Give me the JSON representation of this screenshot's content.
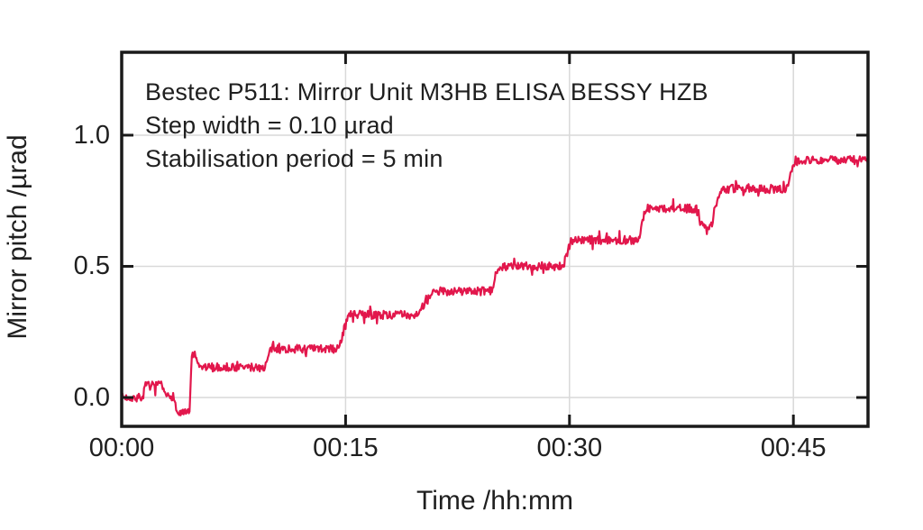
{
  "chart_data": {
    "type": "line",
    "title": "Bestec P511: Mirror Unit M3HB ELISA BESSY HZB",
    "annotation_lines": [
      "Bestec P511: Mirror Unit M3HB ELISA BESSY HZB",
      "Step width = 0.10 µrad",
      "Stabilisation period = 5 min"
    ],
    "xlabel": "Time /hh:mm",
    "ylabel": "Mirror pitch /µrad",
    "xlim": [
      0,
      50
    ],
    "ylim": [
      -0.11,
      1.316
    ],
    "x_unit": "minutes",
    "grid": true,
    "legend": "none",
    "x_ticks": [
      {
        "t": 0,
        "label": "00:00"
      },
      {
        "t": 15,
        "label": "00:15"
      },
      {
        "t": 30,
        "label": "00:30"
      },
      {
        "t": 45,
        "label": "00:45"
      }
    ],
    "y_ticks": [
      {
        "v": 0.0,
        "label": "0.0"
      },
      {
        "v": 0.5,
        "label": "0.5"
      },
      {
        "v": 1.0,
        "label": "1.0"
      }
    ],
    "colors": {
      "line": "#e2174c",
      "axis": "#1a1a1a",
      "grid": "#d9d9d9",
      "text": "#1f1f1f",
      "background": "#ffffff"
    },
    "step_series": {
      "description": "Mirror pitch staircase: ~0.10 µrad steps every 5 min with measurement noise; dip to -0.06 before first step and dip to 0.655 near 00:39",
      "noise_amplitude_urad": 0.016,
      "spike_probability": 0.06,
      "spike_amplitude_urad": 0.03,
      "sample_step_min": 0.05,
      "seed": 7,
      "segments": [
        [
          0.0,
          1.4,
          0.0
        ],
        [
          1.6,
          2.7,
          0.045
        ],
        [
          2.9,
          3.5,
          0.005
        ],
        [
          3.7,
          4.55,
          -0.06
        ],
        [
          4.68,
          4.95,
          0.16
        ],
        [
          5.1,
          9.6,
          0.115
        ],
        [
          10.0,
          14.5,
          0.185
        ],
        [
          15.2,
          19.7,
          0.315
        ],
        [
          21.0,
          24.8,
          0.405
        ],
        [
          25.2,
          29.6,
          0.5
        ],
        [
          30.1,
          34.6,
          0.6
        ],
        [
          35.1,
          38.5,
          0.72
        ],
        [
          38.8,
          39.5,
          0.655
        ],
        [
          40.1,
          44.5,
          0.795
        ],
        [
          45.1,
          50.0,
          0.905
        ]
      ]
    }
  }
}
